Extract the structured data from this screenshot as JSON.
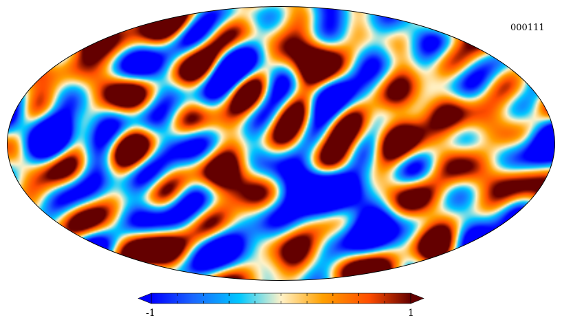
{
  "map": {
    "title": "000111",
    "projection": "mollweide",
    "colormap": "planck",
    "colors": [
      "#0000ff",
      "#1a66ff",
      "#00c8ff",
      "#fff2c8",
      "#ffa000",
      "#ff4d00",
      "#640000"
    ]
  },
  "colorbar": {
    "min_label": "-1",
    "max_label": "1",
    "min": -1,
    "max": 1,
    "ticks": [
      -0.8,
      -0.6,
      -0.4,
      -0.2,
      0.0,
      0.2,
      0.4,
      0.6,
      0.8
    ],
    "extend": "both"
  }
}
